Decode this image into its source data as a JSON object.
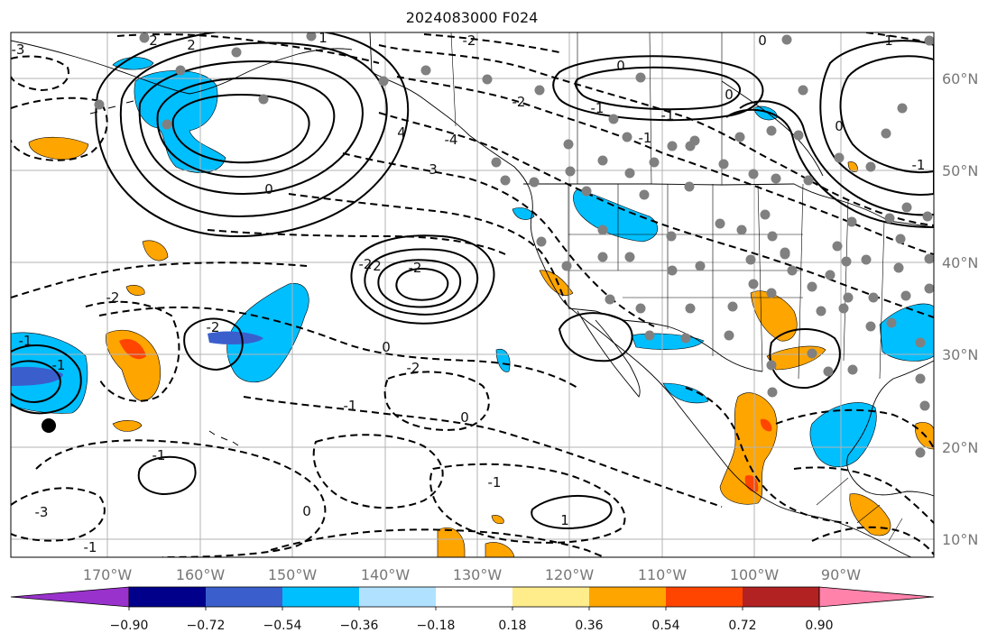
{
  "title": "2024083000 F024",
  "lon_ticks": [
    "170°W",
    "160°W",
    "150°W",
    "140°W",
    "130°W",
    "120°W",
    "110°W",
    "100°W",
    "90°W"
  ],
  "lat_ticks": [
    "60°N",
    "50°N",
    "40°N",
    "30°N",
    "20°N",
    "10°N"
  ],
  "colorbar": {
    "colors": [
      "#9932cc",
      "#00008b",
      "#3a5fcd",
      "#00bfff",
      "#b0e2ff",
      "#ffffff",
      "#ffec8b",
      "#ffa500",
      "#ff4500",
      "#b22222",
      "#ff82ab"
    ],
    "labels": [
      "−0.90",
      "−0.72",
      "−0.54",
      "−0.36",
      "−0.18",
      "0.18",
      "0.36",
      "0.54",
      "0.72",
      "0.90"
    ]
  },
  "contour_labels": [
    "2",
    "2",
    "1",
    "-2",
    "-2",
    "4",
    "3",
    "-4",
    "-3",
    "0",
    "2",
    "-2",
    "-1",
    "0",
    "-1",
    "1",
    "-1",
    "0",
    "-3",
    "-2",
    "-1",
    "-1",
    "0",
    "-2",
    "-2",
    "-2",
    "-1",
    "0",
    "-1",
    "-1",
    "0",
    "0",
    "-1",
    "1",
    "0",
    "-1"
  ]
}
